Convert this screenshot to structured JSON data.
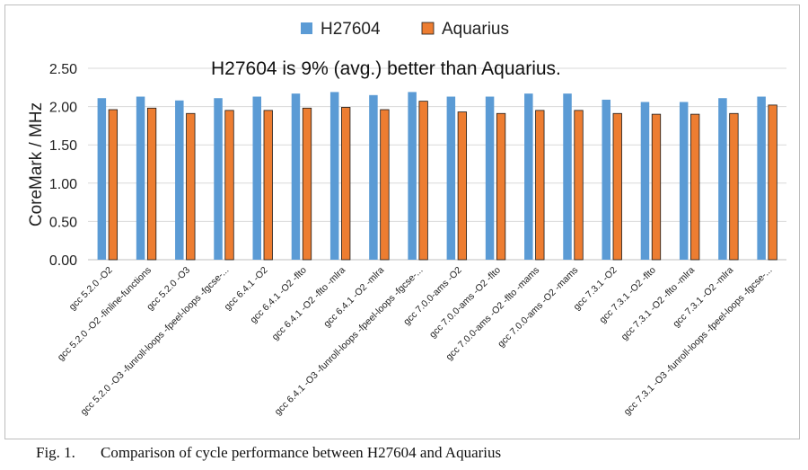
{
  "figure": {
    "caption_number": "Fig. 1.",
    "caption_text": "Comparison of cycle performance between H27604 and Aquarius"
  },
  "chart_data": {
    "type": "bar",
    "title": "",
    "annotation": "H27604 is 9% (avg.) better than Aquarius.",
    "xlabel": "",
    "ylabel": "CoreMark / MHz",
    "ylim": [
      0,
      2.5
    ],
    "yticks": [
      "0.00",
      "0.50",
      "1.00",
      "1.50",
      "2.00",
      "2.50"
    ],
    "grid": true,
    "legend_position": "top-center",
    "categories": [
      "gcc 5.2.0 -O2",
      "gcc 5.2.0 -O2 -finline-functions",
      "gcc 5.2.0 -O3",
      "gcc 5.2.0 -O3 -funroll-loops -fpeel-loops -fgcse-...",
      "gcc 6.4.1 -O2",
      "gcc 6.4.1 -O2 -flto",
      "gcc 6.4.1 -O2 -flto -mlra",
      "gcc 6.4.1 -O2 -mlra",
      "gcc 6.4.1 -O3 -funroll-loops -fpeel-loops -fgcse-...",
      "gcc 7.0.0-ams -O2",
      "gcc 7.0.0-ams -O2 -flto",
      "gcc 7.0.0-ams -O2 -flto -mams",
      "gcc 7.0.0-ams -O2 -mams",
      "gcc 7.3.1 -O2",
      "gcc 7.3.1 -O2 -flto",
      "gcc 7.3.1 -O2 -flto -mlra",
      "gcc 7.3.1 -O2 -mlra",
      "gcc 7.3.1 -O3 -funroll-loops -fpeel-loops -fgcse-..."
    ],
    "series": [
      {
        "name": "H27604",
        "color": "#5b9bd5",
        "values": [
          2.11,
          2.13,
          2.08,
          2.11,
          2.13,
          2.17,
          2.19,
          2.15,
          2.19,
          2.13,
          2.13,
          2.17,
          2.17,
          2.09,
          2.06,
          2.06,
          2.11,
          2.13
        ]
      },
      {
        "name": "Aquarius",
        "color": "#ed7d31",
        "values": [
          1.96,
          1.98,
          1.91,
          1.95,
          1.95,
          1.98,
          1.99,
          1.96,
          2.07,
          1.93,
          1.91,
          1.95,
          1.95,
          1.91,
          1.9,
          1.9,
          1.91,
          2.02
        ]
      }
    ]
  }
}
